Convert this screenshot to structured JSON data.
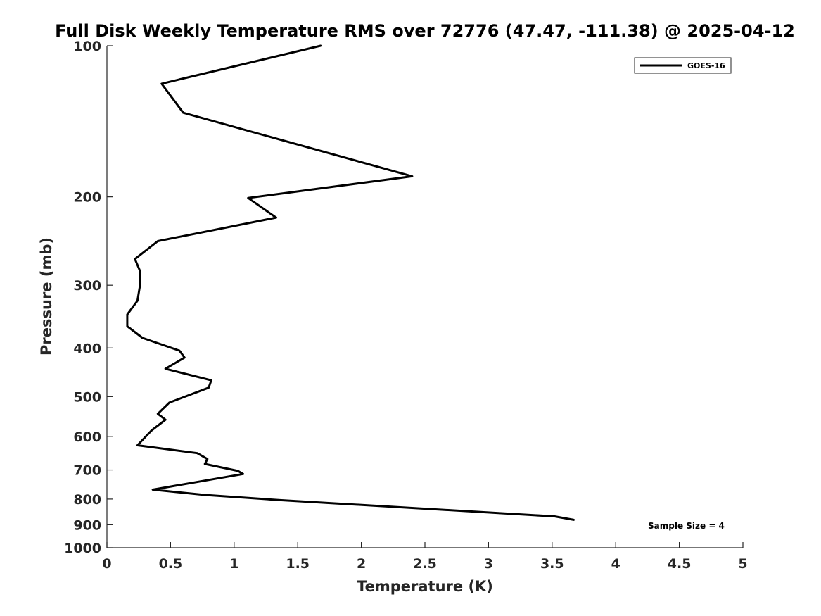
{
  "chart_data": {
    "type": "line",
    "title": "Full Disk Weekly Temperature RMS over 72776 (47.47, -111.38) @ 2025-04-12",
    "xlabel": "Temperature (K)",
    "ylabel": "Pressure (mb)",
    "xlim": [
      0,
      5
    ],
    "ylim": [
      100,
      1000
    ],
    "y_scale": "log",
    "y_reversed": true,
    "x_ticks": [
      "0",
      "0.5",
      "1",
      "1.5",
      "2",
      "2.5",
      "3",
      "3.5",
      "4",
      "4.5",
      "5"
    ],
    "x_tick_values": [
      0,
      0.5,
      1,
      1.5,
      2,
      2.5,
      3,
      3.5,
      4,
      4.5,
      5
    ],
    "y_ticks": [
      "100",
      "200",
      "300",
      "400",
      "500",
      "600",
      "700",
      "800",
      "900",
      "1000"
    ],
    "y_tick_values": [
      100,
      200,
      300,
      400,
      500,
      600,
      700,
      800,
      900,
      1000
    ],
    "grid": false,
    "legend": {
      "placement": "top-right",
      "entries": [
        "GOES-16"
      ]
    },
    "annotation": "Sample Size = 4",
    "series": [
      {
        "name": "GOES-16",
        "color": "#000000",
        "points": [
          [
            1.68,
            100
          ],
          [
            0.43,
            119
          ],
          [
            0.6,
            136
          ],
          [
            2.4,
            182
          ],
          [
            1.11,
            201
          ],
          [
            1.33,
            220
          ],
          [
            0.4,
            245
          ],
          [
            0.22,
            266
          ],
          [
            0.26,
            281
          ],
          [
            0.26,
            300
          ],
          [
            0.24,
            322
          ],
          [
            0.16,
            343
          ],
          [
            0.16,
            362
          ],
          [
            0.28,
            382
          ],
          [
            0.57,
            405
          ],
          [
            0.61,
            418
          ],
          [
            0.46,
            440
          ],
          [
            0.82,
            464
          ],
          [
            0.8,
            480
          ],
          [
            0.49,
            514
          ],
          [
            0.4,
            541
          ],
          [
            0.46,
            556
          ],
          [
            0.35,
            584
          ],
          [
            0.24,
            625
          ],
          [
            0.71,
            648
          ],
          [
            0.79,
            666
          ],
          [
            0.77,
            681
          ],
          [
            1.03,
            703
          ],
          [
            1.07,
            713
          ],
          [
            0.36,
            766
          ],
          [
            0.77,
            785
          ],
          [
            1.36,
            804
          ],
          [
            3.52,
            866
          ],
          [
            3.67,
            880
          ]
        ]
      }
    ]
  }
}
